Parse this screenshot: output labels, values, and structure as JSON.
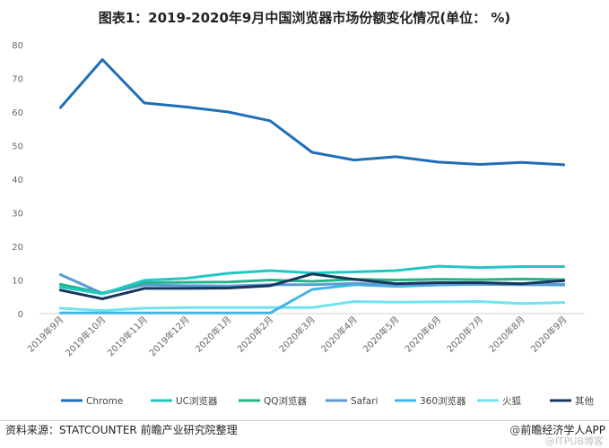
{
  "chart_data": {
    "type": "line",
    "title": "图表1：2019-2020年9月中国浏览器市场份额变化情况(单位： %)",
    "xlabel": "",
    "ylabel": "",
    "ylim": [
      0,
      80
    ],
    "yticks": [
      0,
      10,
      20,
      30,
      40,
      50,
      60,
      70,
      80
    ],
    "grid": false,
    "legend_position": "bottom",
    "categories": [
      "2019年9月",
      "2019年10月",
      "2019年11月",
      "2019年12月",
      "2020年1月",
      "2020年2月",
      "2020年3月",
      "2020年4月",
      "2020年5月",
      "2020年6月",
      "2020年7月",
      "2020年8月",
      "2020年9月"
    ],
    "series": [
      {
        "name": "Chrome",
        "color": "#1f6fb8",
        "values": [
          61.3,
          75.6,
          62.7,
          61.5,
          60.0,
          57.4,
          48.0,
          45.7,
          46.7,
          45.1,
          44.4,
          45.0,
          44.3
        ]
      },
      {
        "name": "UC浏览器",
        "color": "#22c7c3",
        "values": [
          7.9,
          5.9,
          9.9,
          10.5,
          12.0,
          12.8,
          12.1,
          12.4,
          12.8,
          14.1,
          13.7,
          14.0,
          14.0
        ]
      },
      {
        "name": "QQ浏览器",
        "color": "#24b48a",
        "values": [
          8.7,
          6.1,
          9.2,
          9.3,
          9.4,
          10.0,
          9.6,
          10.2,
          10.0,
          10.2,
          10.1,
          10.3,
          10.1
        ]
      },
      {
        "name": "Safari",
        "color": "#5b9bd5",
        "values": [
          11.6,
          6.0,
          8.5,
          8.3,
          8.2,
          8.6,
          8.6,
          9.0,
          8.5,
          8.7,
          8.7,
          8.6,
          8.7
        ]
      },
      {
        "name": "360浏览器",
        "color": "#3fb7e6",
        "values": [
          0.2,
          0.2,
          0.2,
          0.2,
          0.2,
          0.2,
          7.2,
          8.6,
          8.1,
          8.5,
          8.7,
          8.6,
          8.5
        ]
      },
      {
        "name": "火狐",
        "color": "#6fe3f0",
        "values": [
          1.6,
          0.9,
          1.6,
          1.8,
          1.8,
          1.8,
          1.8,
          3.6,
          3.4,
          3.5,
          3.6,
          3.0,
          3.3
        ]
      },
      {
        "name": "其他",
        "color": "#16365d",
        "values": [
          7.0,
          4.4,
          7.5,
          7.5,
          7.6,
          8.3,
          11.8,
          10.2,
          8.9,
          9.2,
          9.2,
          8.9,
          9.8
        ]
      }
    ]
  },
  "footer": {
    "source": "资料来源：STATCOUNTER 前瞻产业研究院整理",
    "brand_at": "@",
    "brand": "前瞻经济学人APP",
    "watermark": "@ITPUB博客"
  }
}
